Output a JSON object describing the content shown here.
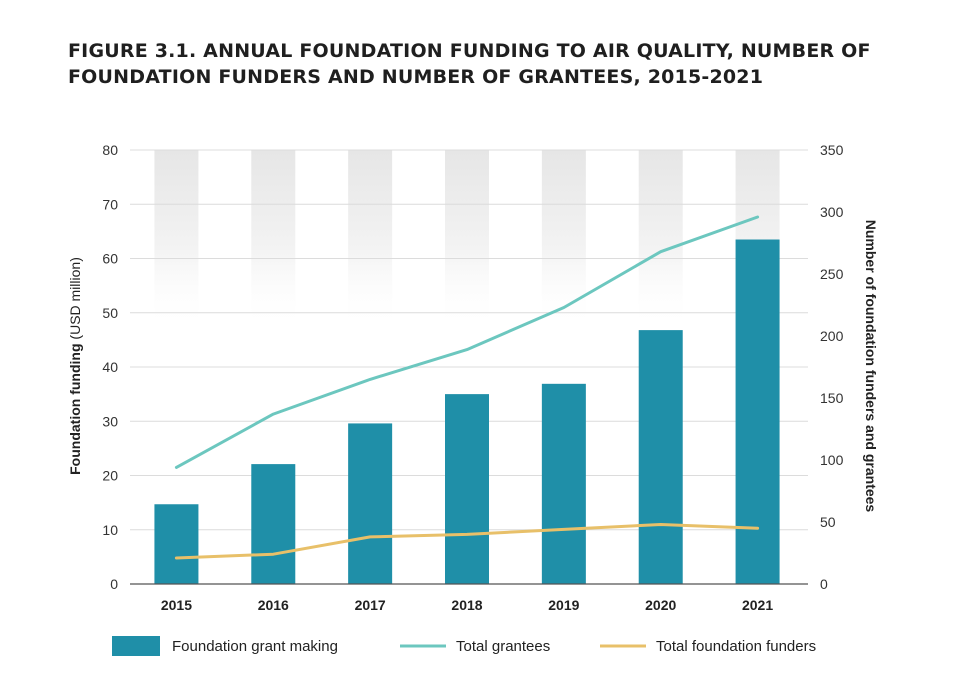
{
  "title_line1": "FIGURE 3.1.  ANNUAL FOUNDATION FUNDING TO AIR QUALITY, NUMBER OF",
  "title_line2": "FOUNDATION FUNDERS AND NUMBER OF GRANTEES, 2015-2021",
  "chart_data": {
    "type": "bar",
    "title": "FIGURE 3.1.  ANNUAL FOUNDATION FUNDING TO AIR QUALITY, NUMBER OF FOUNDATION FUNDERS AND NUMBER OF GRANTEES, 2015-2021",
    "categories": [
      "2015",
      "2016",
      "2017",
      "2018",
      "2019",
      "2020",
      "2021"
    ],
    "ylabel_bold": "Foundation funding",
    "ylabel_rest": " (USD million)",
    "y2label": "Number of foundation funders and grantees",
    "ylim": [
      0,
      80
    ],
    "y2lim": [
      0,
      350
    ],
    "yticks": [
      "0",
      "10",
      "20",
      "30",
      "40",
      "50",
      "60",
      "70",
      "80"
    ],
    "y2ticks": [
      "0",
      "50",
      "100",
      "150",
      "200",
      "250",
      "300",
      "350"
    ],
    "grid": true,
    "legend_position": "bottom",
    "series": [
      {
        "name": "Foundation grant making",
        "type": "bar",
        "axis": "left",
        "color": "#1f8fa8",
        "values": [
          14.7,
          22.1,
          29.6,
          35.0,
          36.9,
          46.8,
          63.5
        ]
      },
      {
        "name": "Total grantees",
        "type": "line",
        "axis": "right",
        "color": "#6cc7bf",
        "values": [
          94,
          137,
          165,
          189,
          223,
          268,
          296
        ]
      },
      {
        "name": "Total foundation funders",
        "type": "line",
        "axis": "right",
        "color": "#e8c069",
        "values": [
          21,
          24,
          38,
          40,
          44,
          48,
          45
        ]
      }
    ]
  }
}
